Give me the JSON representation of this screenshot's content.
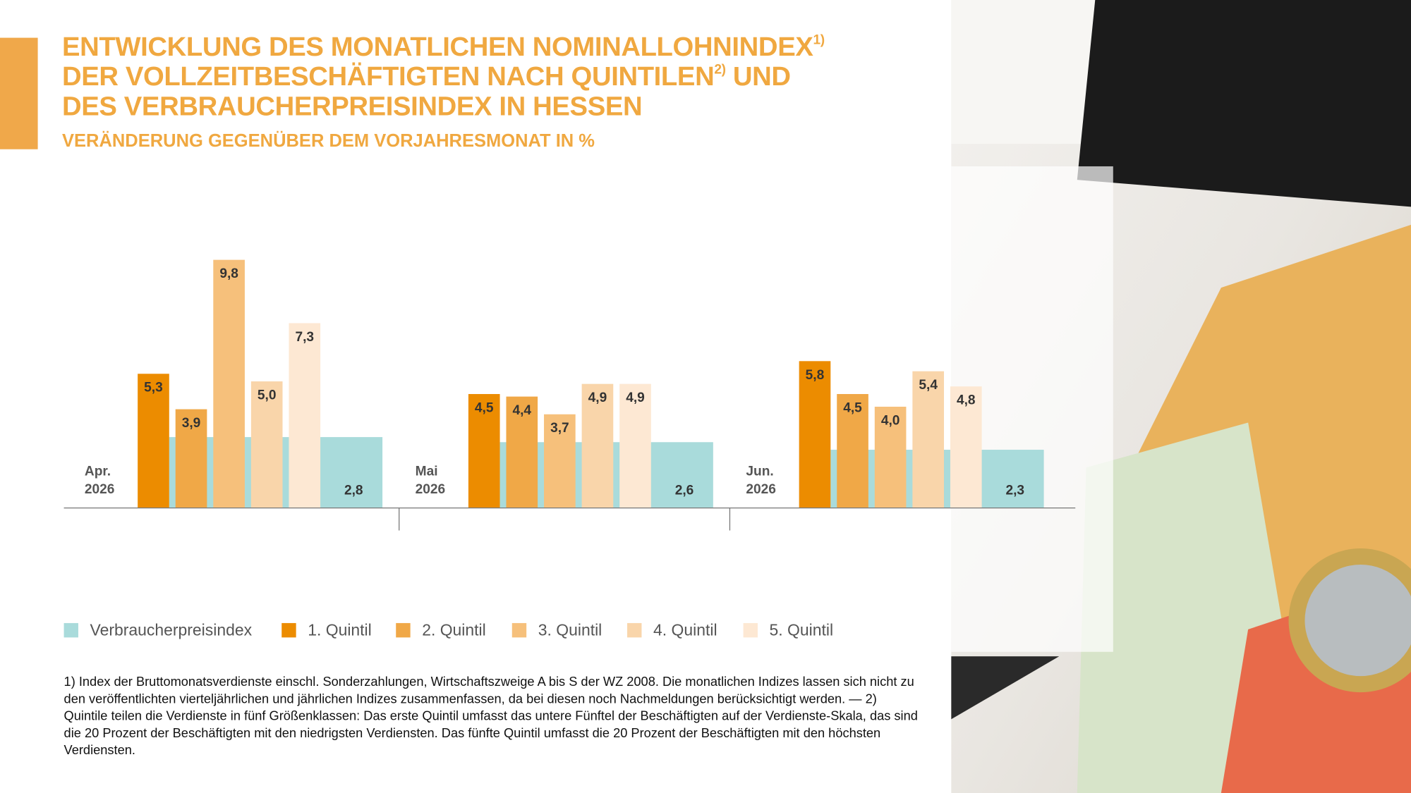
{
  "chart_data": {
    "type": "bar",
    "title": [
      "ENTWICKLUNG DES MONATLICHEN NOMINALLOHNINDEX",
      "1)",
      "DER VOLLZEITBESCHÄFTIGTEN NACH QUINTILEN",
      "2)",
      "UND",
      "DES VERBRAUCHERPREISINDEX IN HESSEN"
    ],
    "subtitle": "VERÄNDERUNG GEGENÜBER DEM VORJAHRESMONAT IN %",
    "categories": [
      [
        "Apr.",
        "2026"
      ],
      [
        "Mai",
        "2026"
      ],
      [
        "Jun.",
        "2026"
      ]
    ],
    "series": [
      {
        "name": "Verbraucherpreisindex",
        "color": "#a9dbdb",
        "values": [
          2.8,
          2.6,
          2.3
        ],
        "value_labels": [
          "2,8",
          "2,6",
          "2,3"
        ]
      },
      {
        "name": "1. Quintil",
        "color": "#ec8c00",
        "values": [
          5.3,
          4.5,
          5.8
        ],
        "value_labels": [
          "5,3",
          "4,5",
          "5,8"
        ]
      },
      {
        "name": "2. Quintil",
        "color": "#f0a847",
        "values": [
          3.9,
          4.4,
          4.5
        ],
        "value_labels": [
          "3,9",
          "4,4",
          "4,5"
        ]
      },
      {
        "name": "3. Quintil",
        "color": "#f6c07b",
        "values": [
          9.8,
          3.7,
          4.0
        ],
        "value_labels": [
          "9,8",
          "3,7",
          "4,0"
        ]
      },
      {
        "name": "4. Quintil",
        "color": "#f9d5aa",
        "values": [
          5.0,
          4.9,
          5.4
        ],
        "value_labels": [
          "5,0",
          "4,9",
          "5,4"
        ]
      },
      {
        "name": "5. Quintil",
        "color": "#fde8d3",
        "values": [
          7.3,
          4.9,
          4.8
        ],
        "value_labels": [
          "7,3",
          "4,9",
          "4,8"
        ]
      }
    ],
    "footnote": "1) Index der Bruttomonatsverdienste einschl. Sonderzahlungen, Wirtschaftszweige A bis S der WZ 2008. Die monatlichen Indizes lassen sich nicht zu den veröffentlichten vierteljährlichen und jährlichen Indizes zusammenfassen, da bei diesen noch Nachmeldungen berücksichtigt werden. — 2) Quintile teilen die Verdienste in fünf Größenklassen: Das erste Quintil umfasst das untere Fünftel der Beschäftigten auf der Verdienste-Skala, das sind die 20 Prozent der Beschäftigten mit den niedrigsten Verdiensten. Das fünfte Quintil umfasst die 20 Prozent der Beschäftigten mit den höchsten Verdiensten."
  }
}
